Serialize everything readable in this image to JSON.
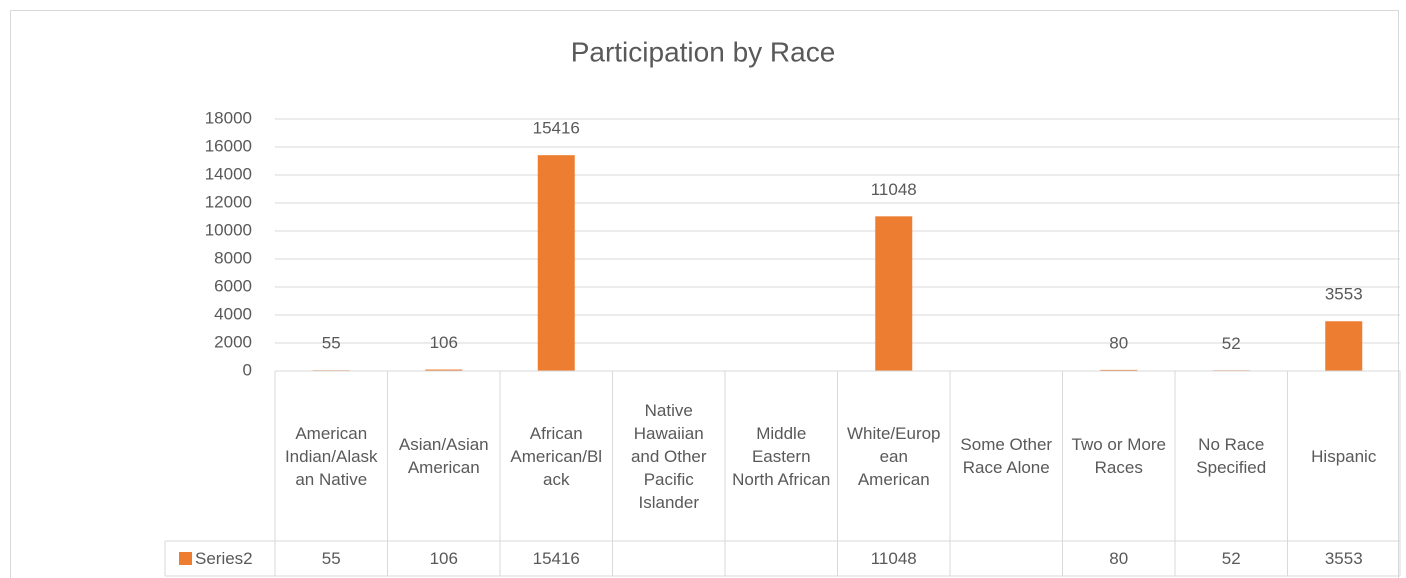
{
  "chart_data": {
    "type": "bar",
    "title": "Participation by Race",
    "categories": [
      "American Indian/Alaskan Native",
      "Asian/Asian American",
      "African American/Black",
      "Native Hawaiian and Other Pacific Islander",
      "Middle Eastern North African",
      "White/European American",
      "Some Other Race Alone",
      "Two or More Races",
      "No Race Specified",
      "Hispanic"
    ],
    "series": [
      {
        "name": "Series2",
        "color": "#ed7d31",
        "values": [
          55,
          106,
          15416,
          null,
          null,
          11048,
          null,
          80,
          52,
          3553
        ]
      }
    ],
    "ylim": [
      0,
      18000
    ],
    "yticks": [
      0,
      2000,
      4000,
      6000,
      8000,
      10000,
      12000,
      14000,
      16000,
      18000
    ],
    "grid": true
  }
}
